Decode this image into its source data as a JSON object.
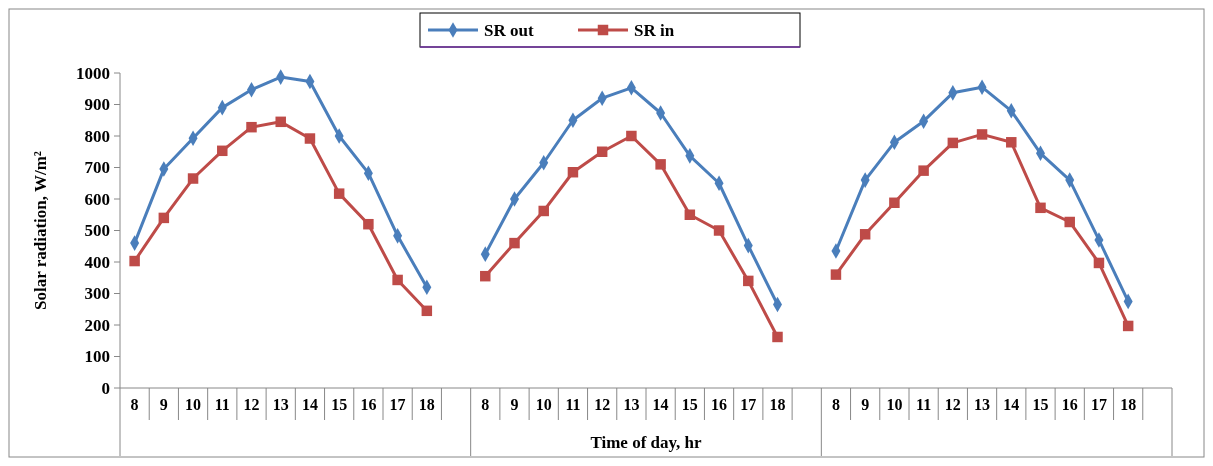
{
  "chart_data": {
    "type": "line",
    "xlabel": "Time of day, hr",
    "ylabel": "Solar radiation, W/m²",
    "categories": [
      "8",
      "9",
      "10",
      "11",
      "12",
      "13",
      "14",
      "15",
      "16",
      "17",
      "18",
      null,
      "8",
      "9",
      "10",
      "11",
      "12",
      "13",
      "14",
      "15",
      "16",
      "17",
      "18",
      null,
      "8",
      "9",
      "10",
      "11",
      "12",
      "13",
      "14",
      "15",
      "16",
      "17",
      "18",
      null
    ],
    "series": [
      {
        "name": "SR out",
        "color": "#4a7ebb",
        "marker": "diamond",
        "values": [
          460,
          695,
          793,
          890,
          947,
          987,
          973,
          800,
          682,
          483,
          320,
          null,
          425,
          600,
          715,
          850,
          920,
          953,
          873,
          737,
          650,
          452,
          265,
          null,
          435,
          660,
          780,
          847,
          937,
          955,
          880,
          745,
          660,
          470,
          275,
          null
        ]
      },
      {
        "name": "SR in",
        "color": "#be4b48",
        "marker": "square",
        "values": [
          403,
          540,
          665,
          753,
          828,
          845,
          792,
          617,
          520,
          343,
          245,
          null,
          355,
          460,
          562,
          685,
          750,
          800,
          710,
          550,
          500,
          340,
          162,
          null,
          360,
          488,
          588,
          690,
          778,
          805,
          780,
          572,
          527,
          397,
          197,
          null
        ]
      }
    ],
    "ylim": [
      0,
      1000
    ],
    "yticks": [
      0,
      100,
      200,
      300,
      400,
      500,
      600,
      700,
      800,
      900,
      1000
    ],
    "grid": false,
    "legend": "top",
    "line_style": "solid"
  }
}
